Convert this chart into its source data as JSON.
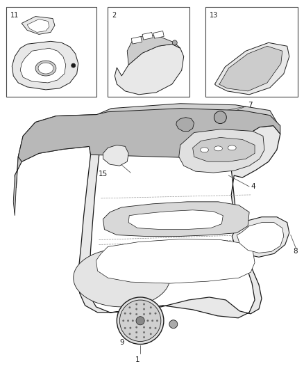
{
  "bg": "#ffffff",
  "lc": "#1a1a1a",
  "gray1": "#cccccc",
  "gray2": "#e8e8e8",
  "gray3": "#aaaaaa",
  "fig_w": 4.38,
  "fig_h": 5.33,
  "dpi": 100
}
